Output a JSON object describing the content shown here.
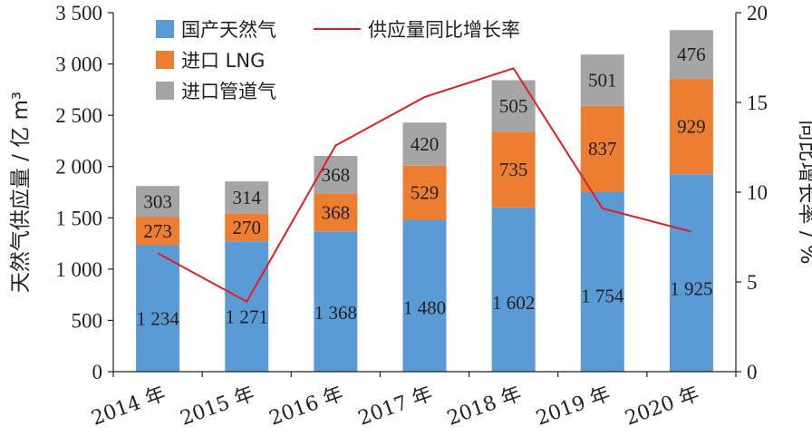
{
  "chart_data": {
    "type": "bar",
    "stacked": true,
    "categories": [
      "2014 年",
      "2015 年",
      "2016 年",
      "2017 年",
      "2018 年",
      "2019 年",
      "2020 年"
    ],
    "series": [
      {
        "name": "国产天然气",
        "values": [
          1234,
          1271,
          1368,
          1480,
          1602,
          1754,
          1925
        ],
        "labels": [
          "1 234",
          "1 271",
          "1 368",
          "1 480",
          "1 602",
          "1 754",
          "1 925"
        ],
        "color": "#5b9bd5"
      },
      {
        "name": "进口 LNG",
        "values": [
          273,
          270,
          368,
          529,
          735,
          837,
          929
        ],
        "labels": [
          "273",
          "270",
          "368",
          "529",
          "735",
          "837",
          "929"
        ],
        "color": "#ed7d31"
      },
      {
        "name": "进口管道气",
        "values": [
          303,
          314,
          368,
          420,
          505,
          501,
          476
        ],
        "labels": [
          "303",
          "314",
          "368",
          "420",
          "505",
          "501",
          "476"
        ],
        "color": "#a5a5a5"
      }
    ],
    "line_series": {
      "name": "供应量同比增长率",
      "axis": "right",
      "values": [
        6.6,
        3.9,
        12.6,
        15.3,
        16.9,
        9.1,
        7.8
      ],
      "color": "#e02020"
    },
    "ylabel": "天然气供应量 / 亿 m³",
    "ylabel_right": "同比增长率 / %",
    "ylim": [
      0,
      3500
    ],
    "ylim_right": [
      0,
      20
    ],
    "yticks": [
      0,
      500,
      1000,
      1500,
      2000,
      2500,
      3000,
      3500
    ],
    "ytick_labels": [
      "0",
      "500",
      "1 000",
      "1 500",
      "2 000",
      "2 500",
      "3 000",
      "3 500"
    ],
    "yticks_right": [
      0,
      5,
      10,
      15,
      20
    ],
    "ytick_labels_right": [
      "0",
      "5",
      "10",
      "15",
      "20"
    ],
    "legend_position": "top-left",
    "grid": false
  }
}
